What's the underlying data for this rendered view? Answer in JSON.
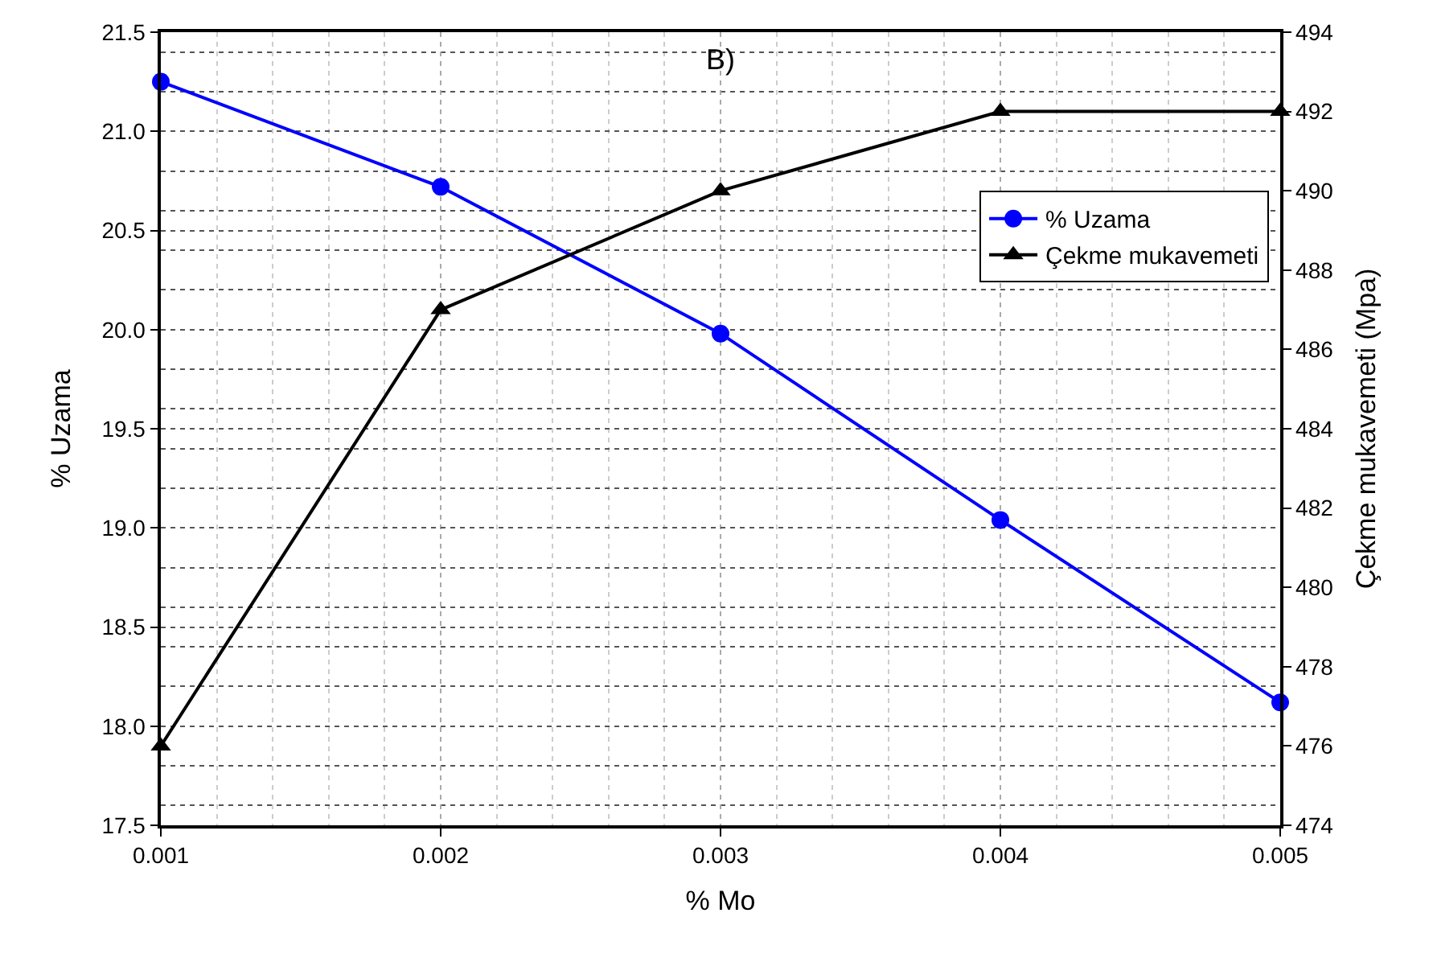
{
  "chart_data": {
    "type": "line",
    "title": "B)",
    "xlabel": "% Mo",
    "ylabel": "% Uzama",
    "y2label": "Çekme mukavemeti (Mpa)",
    "x": [
      0.001,
      0.002,
      0.003,
      0.004,
      0.005
    ],
    "series": [
      {
        "name": "% Uzama",
        "color": "#0000ff",
        "marker": "circle",
        "values": [
          21.25,
          20.72,
          19.98,
          19.04,
          18.12
        ]
      },
      {
        "name": "Çekme mukavemeti",
        "color": "#000000",
        "marker": "triangle",
        "axis": "y2",
        "values": [
          476,
          487,
          490,
          492,
          492
        ]
      }
    ],
    "xlim": [
      0.001,
      0.005
    ],
    "xticks": [
      0.001,
      0.002,
      0.003,
      0.004,
      0.005
    ],
    "ylim": [
      17.5,
      21.5
    ],
    "yticks": [
      17.5,
      {
        "value": 18,
        "label": "18.0"
      },
      18.5,
      {
        "value": 19,
        "label": "19.0"
      },
      19.5,
      {
        "value": 20,
        "label": "20.0"
      },
      20.5,
      {
        "value": 21,
        "label": "21.0"
      },
      21.5
    ],
    "y2lim": [
      474,
      494
    ],
    "y2ticks": [
      474,
      476,
      478,
      480,
      482,
      484,
      486,
      488,
      490,
      492,
      494
    ],
    "grid": true,
    "legend": "top right",
    "line_style": "solid"
  }
}
